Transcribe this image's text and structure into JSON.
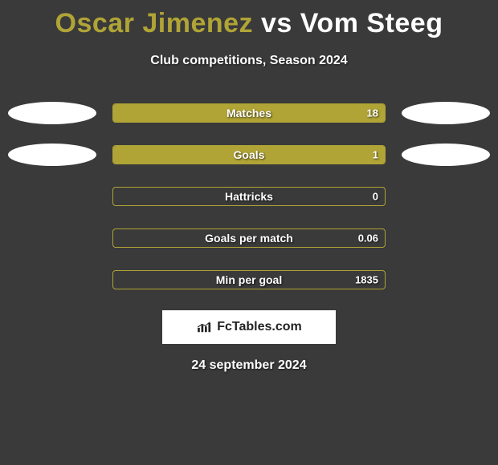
{
  "title": {
    "player1": "Oscar Jimenez",
    "vs": "vs",
    "player2": "Vom Steeg",
    "player1_color": "#b0a436",
    "vs_color": "#ffffff",
    "player2_color": "#ffffff",
    "fontsize": 34
  },
  "subtitle": "Club competitions, Season 2024",
  "background_color": "#3a3a3a",
  "bar_border_color": "#b0a436",
  "ellipse_color": "#ffffff",
  "stats": [
    {
      "label": "Matches",
      "value": "18",
      "fill_pct": 100,
      "fill_color": "#b0a436",
      "show_left_ellipse": true,
      "show_right_ellipse": true
    },
    {
      "label": "Goals",
      "value": "1",
      "fill_pct": 100,
      "fill_color": "#b0a436",
      "show_left_ellipse": true,
      "show_right_ellipse": true
    },
    {
      "label": "Hattricks",
      "value": "0",
      "fill_pct": 0,
      "fill_color": "#b0a436",
      "show_left_ellipse": false,
      "show_right_ellipse": false
    },
    {
      "label": "Goals per match",
      "value": "0.06",
      "fill_pct": 0,
      "fill_color": "#b0a436",
      "show_left_ellipse": false,
      "show_right_ellipse": false
    },
    {
      "label": "Min per goal",
      "value": "1835",
      "fill_pct": 0,
      "fill_color": "#b0a436",
      "show_left_ellipse": false,
      "show_right_ellipse": false
    }
  ],
  "logo": {
    "text": "FcTables.com",
    "box_bg": "#ffffff",
    "text_color": "#222222"
  },
  "date": "24 september 2024"
}
